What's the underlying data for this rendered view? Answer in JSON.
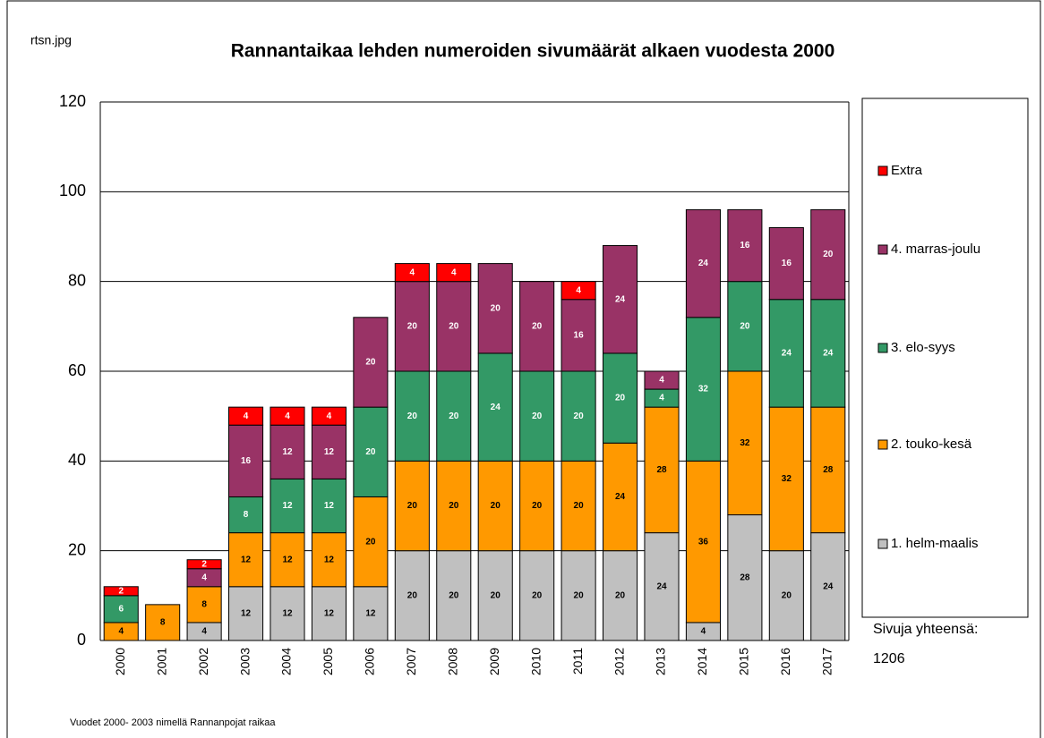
{
  "chart_data": {
    "type": "stacked_bar",
    "corner_note": "rtsn.jpg",
    "title": "Rannantaikaa lehden numeroiden sivumäärät  alkaen vuodesta 2000",
    "categories": [
      "2000",
      "2001",
      "2002",
      "2003",
      "2004",
      "2005",
      "2006",
      "2007",
      "2008",
      "2009",
      "2010",
      "2011",
      "2012",
      "2013",
      "2014",
      "2015",
      "2016",
      "2017"
    ],
    "series": [
      {
        "name": "1. helm-maalis",
        "color": "#c0c0c0",
        "values": [
          null,
          null,
          4,
          12,
          12,
          12,
          12,
          20,
          20,
          20,
          20,
          20,
          20,
          24,
          4,
          28,
          20,
          24
        ]
      },
      {
        "name": "2. touko-kesä",
        "color": "#ff9900",
        "values": [
          4,
          8,
          8,
          12,
          12,
          12,
          20,
          20,
          20,
          20,
          20,
          20,
          24,
          28,
          36,
          32,
          32,
          28
        ]
      },
      {
        "name": "3. elo-syys",
        "color": "#339966",
        "values": [
          6,
          null,
          null,
          8,
          12,
          12,
          20,
          20,
          20,
          24,
          20,
          20,
          20,
          4,
          32,
          20,
          24,
          24
        ]
      },
      {
        "name": "4. marras-joulu",
        "color": "#993366",
        "values": [
          null,
          null,
          4,
          16,
          12,
          12,
          20,
          20,
          20,
          20,
          20,
          16,
          24,
          4,
          24,
          16,
          16,
          20
        ]
      },
      {
        "name": "Extra",
        "color": "#ff0000",
        "values": [
          2,
          null,
          2,
          4,
          4,
          4,
          null,
          4,
          4,
          null,
          null,
          4,
          null,
          null,
          null,
          null,
          null,
          null
        ]
      }
    ],
    "ylim": [
      0,
      120
    ],
    "yticks": [
      0,
      20,
      40,
      60,
      80,
      100,
      120
    ],
    "grid": true,
    "total_label": "Sivuja yhteensä:",
    "total_value": 1206,
    "footnote": "Vuodet 2000- 2003 nimellä Rannanpojat raikaa"
  }
}
